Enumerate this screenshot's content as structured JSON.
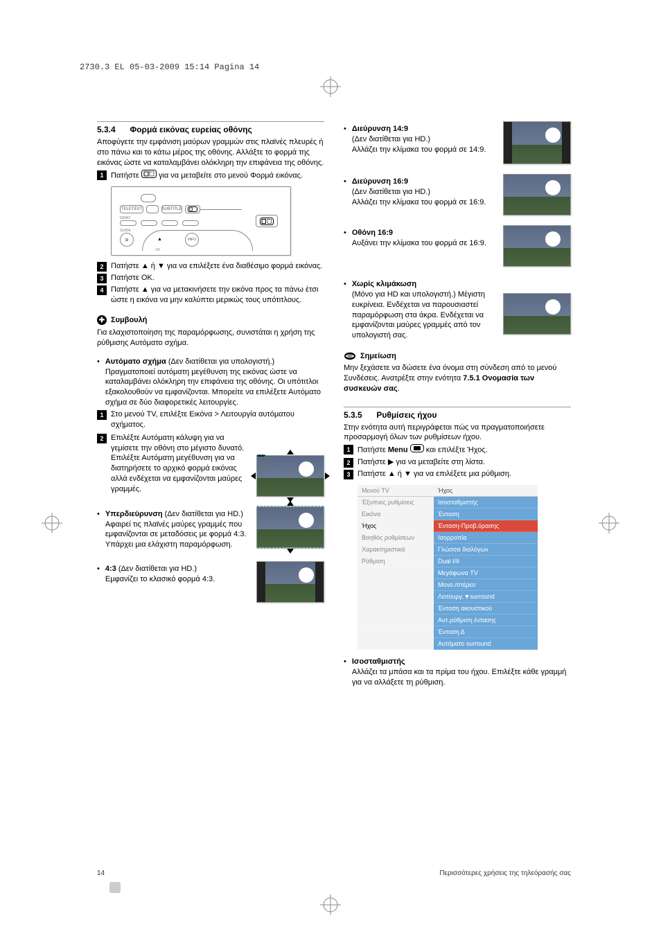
{
  "print_header": "2730.3 EL  05-03-2009  15:14  Pagina 14",
  "left": {
    "heading_num": "5.3.4",
    "heading_title": "Φορμά εικόνας ευρείας οθόνης",
    "intro": "Αποφύγετε την εμφάνιση μαύρων γραμμών στις πλαϊνές πλευρές ή στο πάνω και το κάτω μέρος της οθόνης. Αλλάξτε το φορμά της εικόνας ώστε να καταλαμβάνει ολόκληρη την επιφάνεια της οθόνης.",
    "step1_a": "Πατήστε ",
    "step1_b": " για να μεταβείτε στο μενού Φορμά εικόνας.",
    "step2": "Πατήστε ▲ ή ▼ για να επιλέξετε ένα διαθέσιμο φορμά εικόνας.",
    "step3": "Πατήστε OK.",
    "step4": "Πατήστε ▲ για να μετακινήσετε την εικόνα προς τα πάνω έτσι ώστε η εικόνα να μην καλύπτει μερικώς τους υπότιτλους.",
    "tip_label": "Συμβουλή",
    "tip_body": "Για ελαχιστοποίηση της παραμόρφωσης, συνιστάται η χρήση της ρύθμισης Αυτόματο σχήμα.",
    "auto_title": "Αυτόματο σχήμα",
    "auto_note": " (Δεν διατίθεται για υπολογιστή.)",
    "auto_body": "Πραγματοποιεί αυτόματη μεγέθυνση της εικόνας ώστε να καταλαμβάνει ολόκληρη την επιφάνεια της οθόνης. Οι υπότιτλοι εξακολουθούν να εμφανίζονται. Μπορείτε να επιλέξετε Αυτόματο σχήμα σε δύο διαφορετικές λειτουργίες.",
    "auto_s1": "Στο μενού TV, επιλέξτε Εικόνα > Λειτουργία αυτόματου σχήματος.",
    "auto_s2": "Επιλέξτε Αυτόματη κάλυψη για να γεμίσετε την οθόνη στο μέγιστο δυνατό. Επιλέξτε Αυτόματη μεγέθυνση για να διατηρήσετε το αρχικό φορμά εικόνας αλλά ενδέχεται να εμφανίζονται μαύρες γραμμές.",
    "super_title": "Υπερδιεύρυνση",
    "super_note": " (Δεν διατίθεται για HD.)",
    "super_body": "Αφαιρεί τις πλαϊνές μαύρες γραμμές που εμφανίζονται σε μεταδόσεις με φορμά 4:3. Υπάρχει μια ελάχιστη παραμόρφωση.",
    "f43_title": "4:3",
    "f43_note": " (Δεν διατίθεται για HD.)",
    "f43_body": "Εμφανίζει το κλασικό φορμά 4:3."
  },
  "right": {
    "f149_title": "Διεύρυνση 14:9",
    "f149_note": "(Δεν διατίθεται για HD.)",
    "f149_body": "Αλλάζει την κλίμακα του φορμά σε 14:9.",
    "f169_title": "Διεύρυνση 16:9",
    "f169_note": "(Δεν διατίθεται για HD.)",
    "f169_body": "Αλλάζει την κλίμακα του φορμά σε 16:9.",
    "s169_title": "Οθόνη 16:9",
    "s169_body": "Αυξάνει την κλίμακα του φορμά σε 16:9.",
    "unsc_title": "Χωρίς κλιμάκωση",
    "unsc_body": "(Μόνο για HD και υπολογιστή.) Μέγιστη ευκρίνεια. Ενδέχεται να παρουσιαστεί παραμόρφωση στα άκρα. Ενδέχεται να εμφανίζονται μαύρες γραμμές από τον υπολογιστή σας.",
    "note_label": "Σημείωση",
    "note_body_a": "Μην ξεχάσετε να δώσετε ένα όνομα στη σύνδεση από το μενού Συνδέσεις. Ανατρέξτε στην ενότητα ",
    "note_body_b": "7.5.1 Ονομασία των συσκευών σας",
    "note_body_c": ".",
    "h535_num": "5.3.5",
    "h535_title": "Ρυθμίσεις ήχου",
    "h535_intro": "Στην ενότητα αυτή περιγράφεται πώς να πραγματοποιήσετε προσαρμογή όλων των ρυθμίσεων ήχου.",
    "s535_1a": "Πατήστε ",
    "s535_1b": "Menu",
    "s535_1c": " και επιλέξτε Ήχος.",
    "s535_2": "Πατήστε ▶ για να μεταβείτε στη λίστα.",
    "s535_3": "Πατήστε ▲ ή ▼ για να επιλέξετε μια ρύθμιση.",
    "menu_left_header": "Μενού TV",
    "menu_right_header": "Ήχος",
    "menu_left": [
      "Έξυπνες ρυθμίσεις",
      "Εικόνα",
      "Ήχος",
      "Βοηθός ρυθμίσεων",
      "Χαρακτηριστικά",
      "Ρύθμιση",
      "",
      "",
      "",
      "",
      "",
      ""
    ],
    "menu_right": [
      "Ισοσταθμιστής",
      "Ένταση",
      "Ένταση-Προβ.όρασης",
      "Ισορροπία",
      "Γλώσσα διαλόγων",
      "Dual I/II",
      "Μεγάφωνα TV",
      "Μονο./στέρεο",
      "Λειτουργ.▼surround",
      "Ένταση ακουστικού",
      "Αυτ.ρύθμιση έντασης",
      "Ένταση Δ",
      "Αυτόματο surround"
    ],
    "menu_highlight_idx": 2,
    "eq_title": "Ισοσταθμιστής",
    "eq_body": "Αλλάζει τα μπάσα και τα πρίμα του ήχου. Επιλέξτε κάθε γραμμή για να αλλάξετε τη ρύθμιση."
  },
  "footer_page": "14",
  "footer_text": "Περισσότερες χρήσεις της τηλεόρασής σας",
  "colors": {
    "menu_blue": "#6aa6d8",
    "menu_red": "#d94a3a"
  }
}
